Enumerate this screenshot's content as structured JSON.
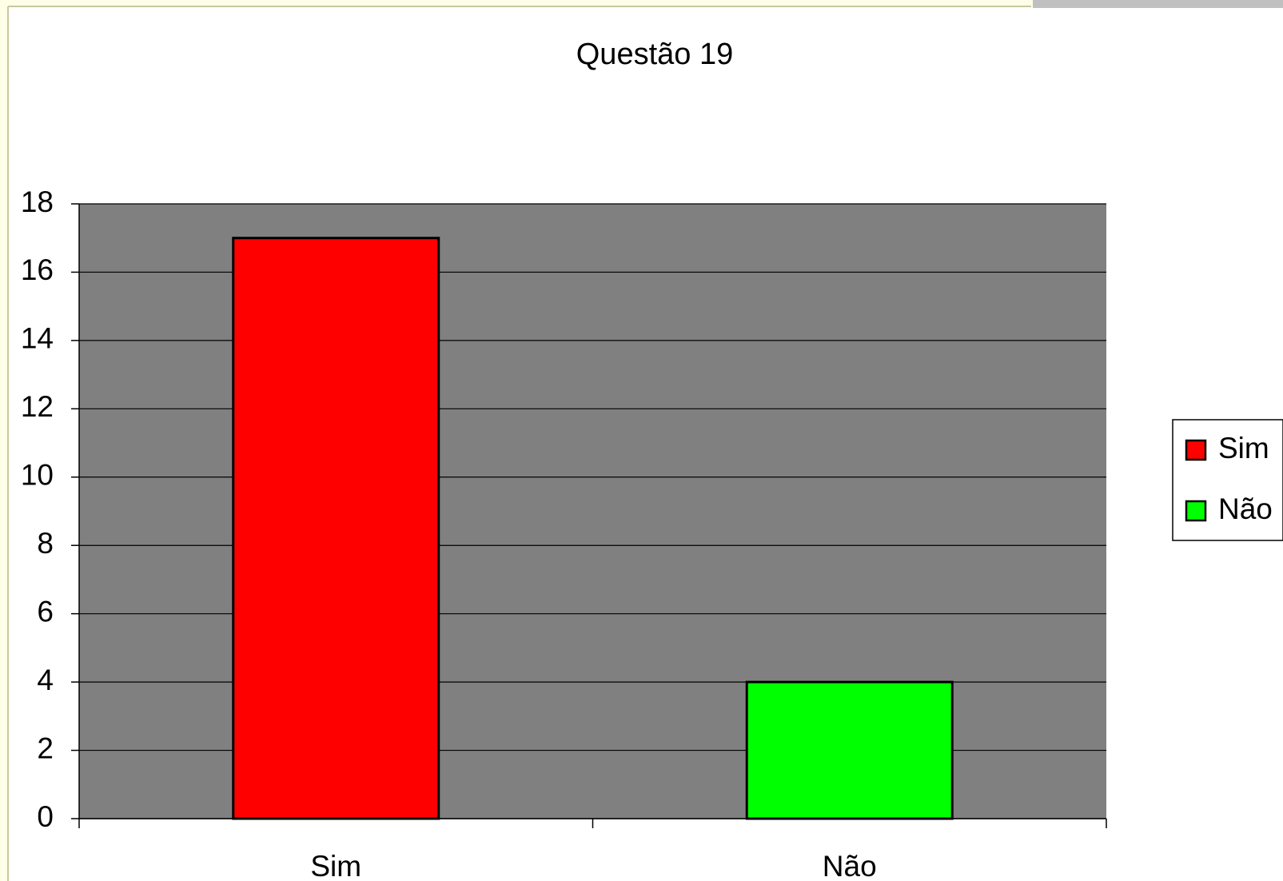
{
  "chart_data": {
    "type": "bar",
    "title": "Questão 19",
    "categories": [
      "Sim",
      "Não"
    ],
    "values": [
      17,
      4
    ],
    "colors": [
      "#ff0000",
      "#00ff00"
    ],
    "ylim": [
      0,
      18
    ],
    "yticks": [
      0,
      2,
      4,
      6,
      8,
      10,
      12,
      14,
      16,
      18
    ],
    "grid": true,
    "legend": "right"
  }
}
